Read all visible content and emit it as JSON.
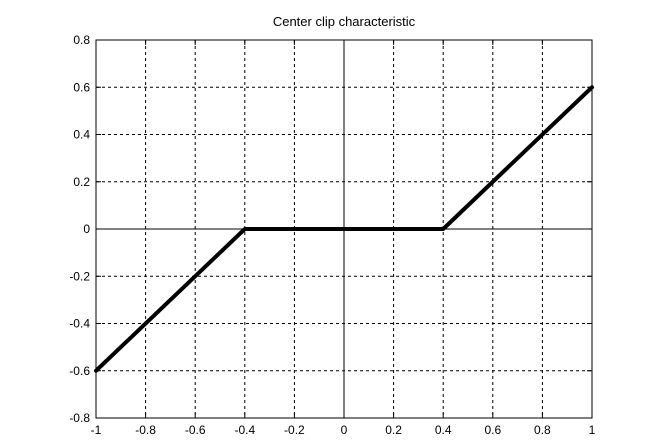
{
  "chart_data": {
    "type": "line",
    "title": "Center clip characteristic",
    "xlabel": "",
    "ylabel": "",
    "xlim": [
      -1,
      1
    ],
    "ylim": [
      -0.8,
      0.8
    ],
    "x_ticks": [
      -1,
      -0.8,
      -0.6,
      -0.4,
      -0.2,
      0,
      0.2,
      0.4,
      0.6,
      0.8,
      1
    ],
    "y_ticks": [
      -0.8,
      -0.6,
      -0.4,
      -0.2,
      0,
      0.2,
      0.4,
      0.6,
      0.8
    ],
    "x_tick_labels": [
      "-1",
      "-0.8",
      "-0.6",
      "-0.4",
      "-0.2",
      "0",
      "0.2",
      "0.4",
      "0.6",
      "0.8",
      "1"
    ],
    "y_tick_labels": [
      "-0.8",
      "-0.6",
      "-0.4",
      "-0.2",
      "0",
      "0.2",
      "0.4",
      "0.6",
      "0.8"
    ],
    "grid": true,
    "grid_style": "dotted",
    "axis_zero_lines": true,
    "series": [
      {
        "x": [
          -1,
          -0.4,
          0.4,
          1
        ],
        "y": [
          -0.6,
          0,
          0,
          0.6
        ],
        "color": "#000000"
      }
    ]
  }
}
